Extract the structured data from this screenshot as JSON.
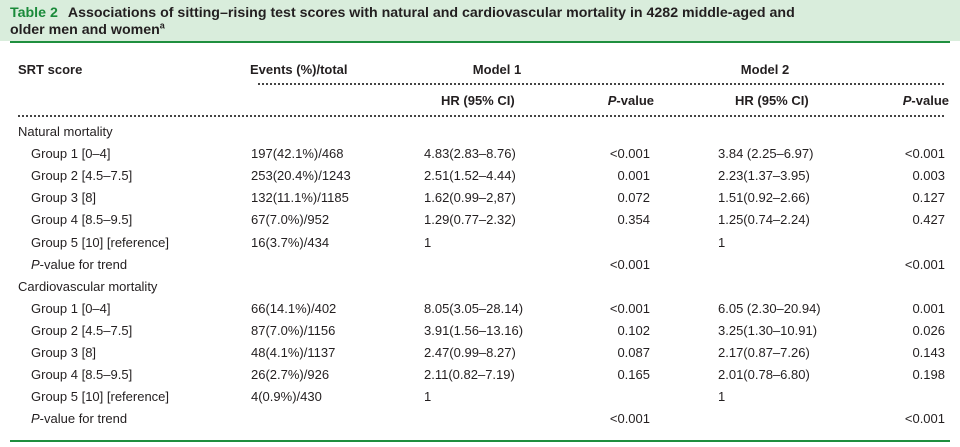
{
  "caption": {
    "label": "Table 2",
    "title_line1": "Associations of sitting–rising test scores with natural and cardiovascular mortality in 4282 middle-aged and",
    "title_line2": "older men and women",
    "footnote_mark": "a"
  },
  "header": {
    "srt_score": "SRT score",
    "events": "Events (%)/total",
    "model1": "Model 1",
    "model2": "Model 2",
    "hr": "HR (95% CI)",
    "p_italic": "P",
    "p_rest": "-value"
  },
  "sections": [
    {
      "title": "Natural mortality",
      "rows": [
        {
          "group": "Group 1 [0–4]",
          "events": "197(42.1%)/468",
          "hr1": "4.83(2.83–8.76)",
          "p1": "<0.001",
          "hr2": "3.84 (2.25–6.97)",
          "p2": "<0.001"
        },
        {
          "group": "Group 2 [4.5–7.5]",
          "events": "253(20.4%)/1243",
          "hr1": "2.51(1.52–4.44)",
          "p1": "0.001",
          "hr2": "2.23(1.37–3.95)",
          "p2": "0.003"
        },
        {
          "group": "Group 3 [8]",
          "events": "132(11.1%)/1185",
          "hr1": "1.62(0.99–2,87)",
          "p1": "0.072",
          "hr2": "1.51(0.92–2.66)",
          "p2": "0.127"
        },
        {
          "group": "Group 4 [8.5–9.5]",
          "events": "67(7.0%)/952",
          "hr1": "1.29(0.77–2.32)",
          "p1": "0.354",
          "hr2": "1.25(0.74–2.24)",
          "p2": "0.427"
        },
        {
          "group": "Group 5 [10] [reference]",
          "events": "16(3.7%)/434",
          "hr1": "1",
          "p1": "",
          "hr2": "1",
          "p2": ""
        }
      ],
      "trend": {
        "label_italic": "P",
        "label_rest": "-value for trend",
        "p1": "<0.001",
        "p2": "<0.001"
      }
    },
    {
      "title": "Cardiovascular mortality",
      "rows": [
        {
          "group": "Group 1 [0–4]",
          "events": "66(14.1%)/402",
          "hr1": "8.05(3.05–28.14)",
          "p1": "<0.001",
          "hr2": "6.05 (2.30–20.94)",
          "p2": "0.001"
        },
        {
          "group": "Group 2 [4.5–7.5]",
          "events": "87(7.0%)/1156",
          "hr1": "3.91(1.56–13.16)",
          "p1": "0.102",
          "hr2": "3.25(1.30–10.91)",
          "p2": "0.026"
        },
        {
          "group": "Group 3 [8]",
          "events": "48(4.1%)/1137",
          "hr1": "2.47(0.99–8.27)",
          "p1": "0.087",
          "hr2": "2.17(0.87–7.26)",
          "p2": "0.143"
        },
        {
          "group": "Group 4 [8.5–9.5]",
          "events": "26(2.7%)/926",
          "hr1": "2.11(0.82–7.19)",
          "p1": "0.165",
          "hr2": "2.01(0.78–6.80)",
          "p2": "0.198"
        },
        {
          "group": "Group 5 [10] [reference]",
          "events": "4(0.9%)/430",
          "hr1": "1",
          "p1": "",
          "hr2": "1",
          "p2": ""
        }
      ],
      "trend": {
        "label_italic": "P",
        "label_rest": "-value for trend",
        "p1": "<0.001",
        "p2": "<0.001"
      }
    }
  ]
}
